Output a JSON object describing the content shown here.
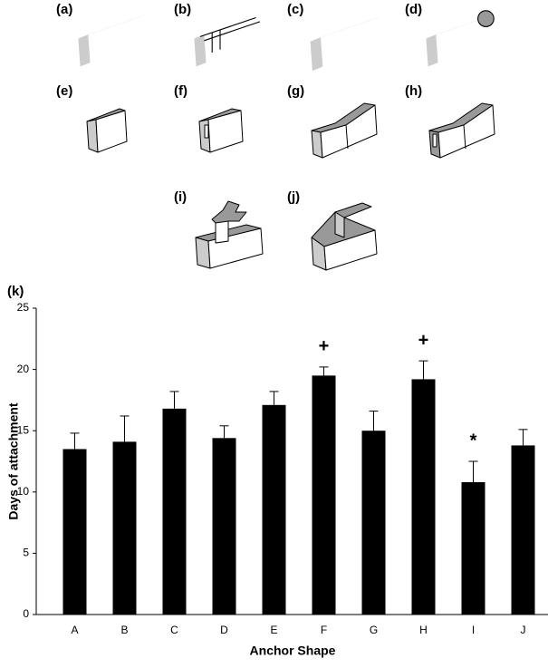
{
  "panels": [
    "(a)",
    "(b)",
    "(c)",
    "(d)",
    "(e)",
    "(f)",
    "(g)",
    "(h)",
    "(i)",
    "(j)"
  ],
  "chart_data": {
    "type": "bar",
    "panel_label": "(k)",
    "x_label": "Anchor Shape",
    "y_label": "Days of attachment",
    "categories": [
      "A",
      "B",
      "C",
      "D",
      "E",
      "F",
      "G",
      "H",
      "I",
      "J"
    ],
    "values": [
      13.5,
      14.1,
      16.8,
      14.4,
      17.1,
      19.5,
      15.0,
      19.2,
      10.8,
      13.8
    ],
    "errors": [
      1.3,
      2.1,
      1.4,
      1.0,
      1.1,
      0.7,
      1.6,
      1.5,
      1.7,
      1.3
    ],
    "color": "#000000",
    "ylim": [
      0,
      25
    ],
    "yticks": [
      0,
      5,
      10,
      15,
      20,
      25
    ],
    "grid": false,
    "annotations": [
      {
        "text": "+",
        "category": "F"
      },
      {
        "text": "+",
        "category": "H"
      },
      {
        "text": "*",
        "category": "I"
      }
    ]
  }
}
